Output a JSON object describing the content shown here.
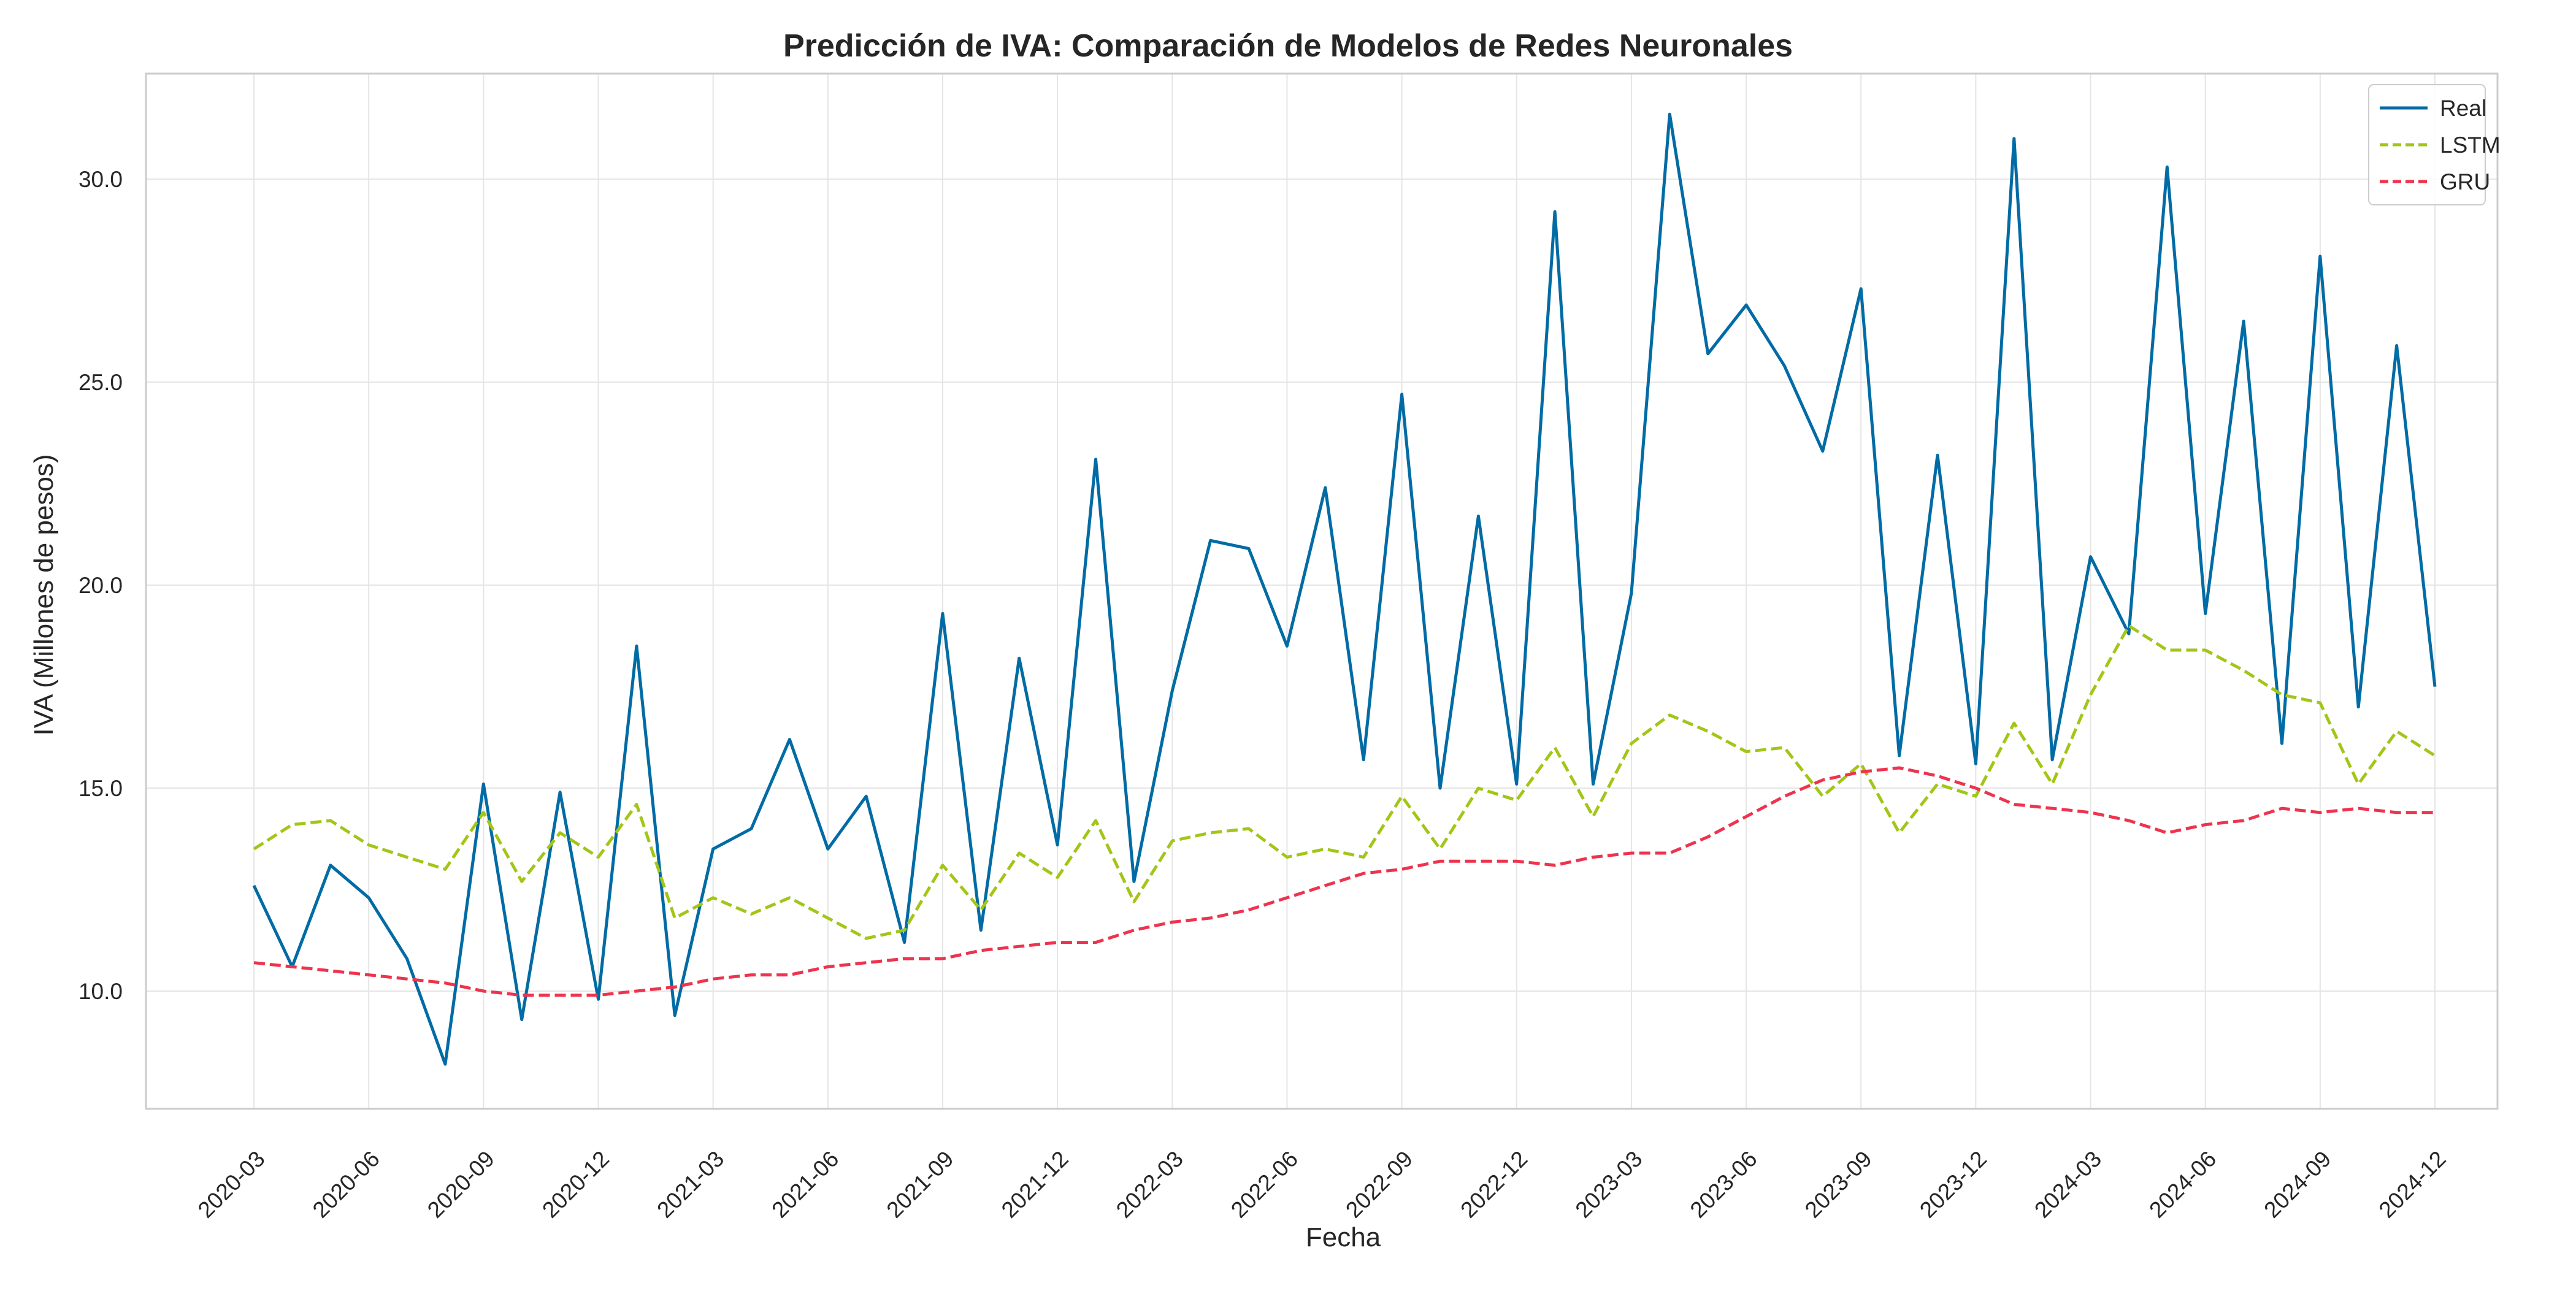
{
  "chart_data": {
    "type": "line",
    "title": "Predicción de IVA: Comparación de Modelos de Redes Neuronales",
    "xlabel": "Fecha",
    "ylabel": "IVA (Millones de pesos)",
    "grid": true,
    "legend_position": "top-right",
    "ylim": [
      7.1,
      32.6
    ],
    "yticks": [
      10.0,
      15.0,
      20.0,
      25.0,
      30.0
    ],
    "ytick_labels": [
      "10.0",
      "15.0",
      "20.0",
      "25.0",
      "30.0"
    ],
    "xtick_indices": [
      0,
      3,
      6,
      9,
      12,
      15,
      18,
      21,
      24,
      27,
      30,
      33,
      36,
      39,
      42,
      45,
      48,
      51,
      54,
      57
    ],
    "xtick_labels": [
      "2020-03",
      "2020-06",
      "2020-09",
      "2020-12",
      "2021-03",
      "2021-06",
      "2021-09",
      "2021-12",
      "2022-03",
      "2022-06",
      "2022-09",
      "2022-12",
      "2023-03",
      "2023-06",
      "2023-09",
      "2023-12",
      "2024-03",
      "2024-06",
      "2024-09",
      "2024-12"
    ],
    "x": [
      "2020-03",
      "2020-04",
      "2020-05",
      "2020-06",
      "2020-07",
      "2020-08",
      "2020-09",
      "2020-10",
      "2020-11",
      "2020-12",
      "2021-01",
      "2021-02",
      "2021-03",
      "2021-04",
      "2021-05",
      "2021-06",
      "2021-07",
      "2021-08",
      "2021-09",
      "2021-10",
      "2021-11",
      "2021-12",
      "2022-01",
      "2022-02",
      "2022-03",
      "2022-04",
      "2022-05",
      "2022-06",
      "2022-07",
      "2022-08",
      "2022-09",
      "2022-10",
      "2022-11",
      "2022-12",
      "2023-01",
      "2023-02",
      "2023-03",
      "2023-04",
      "2023-05",
      "2023-06",
      "2023-07",
      "2023-08",
      "2023-09",
      "2023-10",
      "2023-11",
      "2023-12",
      "2024-01",
      "2024-02",
      "2024-03",
      "2024-04",
      "2024-05",
      "2024-06",
      "2024-07",
      "2024-08",
      "2024-09",
      "2024-10",
      "2024-11",
      "2024-12"
    ],
    "series": [
      {
        "name": "Real",
        "color": "#006ba4",
        "dash": "solid",
        "values": [
          12.6,
          10.6,
          13.1,
          12.3,
          10.8,
          8.2,
          15.1,
          9.3,
          14.9,
          9.8,
          18.5,
          9.4,
          13.5,
          14.0,
          16.2,
          13.5,
          14.8,
          11.2,
          19.3,
          11.5,
          18.2,
          13.6,
          23.1,
          12.7,
          17.4,
          21.1,
          20.9,
          18.5,
          22.4,
          15.7,
          24.7,
          15.0,
          21.7,
          15.1,
          29.2,
          15.1,
          19.8,
          31.6,
          25.7,
          26.9,
          25.4,
          23.3,
          27.3,
          15.8,
          23.2,
          15.6,
          31.0,
          15.7,
          20.7,
          18.8,
          30.3,
          19.3,
          26.5,
          16.1,
          28.1,
          17.0,
          25.9,
          17.5
        ]
      },
      {
        "name": "LSTM",
        "color": "#a2c617",
        "dash": "dashed",
        "values": [
          13.5,
          14.1,
          14.2,
          13.6,
          13.3,
          13.0,
          14.4,
          12.7,
          13.9,
          13.3,
          14.6,
          11.8,
          12.3,
          11.9,
          12.3,
          11.8,
          11.3,
          11.5,
          13.1,
          12.0,
          13.4,
          12.8,
          14.2,
          12.2,
          13.7,
          13.9,
          14.0,
          13.3,
          13.5,
          13.3,
          14.8,
          13.5,
          15.0,
          14.7,
          16.0,
          14.3,
          16.1,
          16.8,
          16.4,
          15.9,
          16.0,
          14.8,
          15.6,
          13.9,
          15.1,
          14.8,
          16.6,
          15.1,
          17.3,
          19.0,
          18.4,
          18.4,
          17.9,
          17.3,
          17.1,
          15.1,
          16.4,
          15.8
        ]
      },
      {
        "name": "GRU",
        "color": "#ee334e",
        "dash": "dashed",
        "values": [
          10.7,
          10.6,
          10.5,
          10.4,
          10.3,
          10.2,
          10.0,
          9.9,
          9.9,
          9.9,
          10.0,
          10.1,
          10.3,
          10.4,
          10.4,
          10.6,
          10.7,
          10.8,
          10.8,
          11.0,
          11.1,
          11.2,
          11.2,
          11.5,
          11.7,
          11.8,
          12.0,
          12.3,
          12.6,
          12.9,
          13.0,
          13.2,
          13.2,
          13.2,
          13.1,
          13.3,
          13.4,
          13.4,
          13.8,
          14.3,
          14.8,
          15.2,
          15.4,
          15.5,
          15.3,
          15.0,
          14.6,
          14.5,
          14.4,
          14.2,
          13.9,
          14.1,
          14.2,
          14.5,
          14.4,
          14.5,
          14.4,
          14.4
        ]
      }
    ]
  }
}
